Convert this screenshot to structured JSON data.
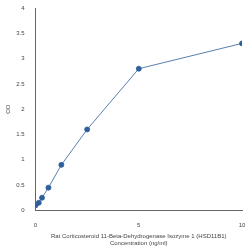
{
  "chart_data": {
    "type": "line",
    "x_label": [
      "Rat Corticosteroid 11-Beta-Dehydrogenase Isozyme 1 (HSD11B1)",
      "Concentration (ng/ml)"
    ],
    "y_label": "OD",
    "x": [
      0,
      0.156,
      0.313,
      0.625,
      1.25,
      2.5,
      5,
      10
    ],
    "values": [
      0.1,
      0.15,
      0.25,
      0.45,
      0.9,
      1.6,
      2.8,
      3.3
    ],
    "color": "#2e5f99",
    "marker": "circle",
    "xlim": [
      0,
      10
    ],
    "xticks": [
      0,
      5,
      10
    ],
    "ylim": [
      0,
      4
    ],
    "yticks": [
      0,
      0.5,
      1,
      1.5,
      2,
      2.5,
      3,
      3.5,
      4
    ],
    "grid": false
  }
}
